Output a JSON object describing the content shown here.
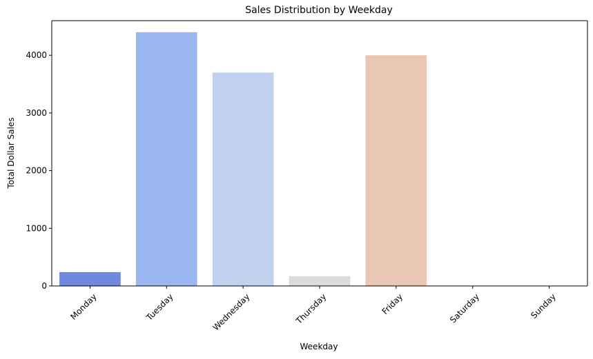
{
  "chart_data": {
    "type": "bar",
    "title": "Sales Distribution by Weekday",
    "xlabel": "Weekday",
    "ylabel": "Total Dollar Sales",
    "categories": [
      "Monday",
      "Tuesday",
      "Wednesday",
      "Thursday",
      "Friday",
      "Saturday",
      "Sunday"
    ],
    "values": [
      240,
      4400,
      3700,
      170,
      4000,
      0,
      0
    ],
    "colors": [
      "#6f89e0",
      "#9bb7f2",
      "#c1d2f0",
      "#dcdcdc",
      "#eac6b4",
      "#eac6b4",
      "#eac6b4"
    ],
    "ylim": [
      0,
      4600
    ],
    "yticks": [
      0,
      1000,
      2000,
      3000,
      4000
    ],
    "grid": false
  }
}
